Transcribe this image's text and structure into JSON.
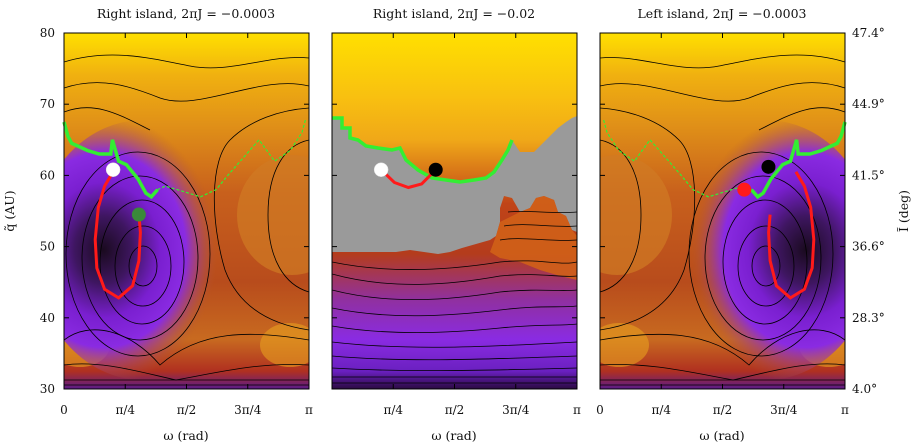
{
  "chart_data": [
    {
      "type": "heatmap",
      "title": "Right island,  2πJ = −0.0003",
      "xlabel": "ω (rad)",
      "ylabel": "q̃ (AU)",
      "xlim": [
        0,
        3.1416
      ],
      "ylim": [
        30,
        80
      ],
      "colormap": [
        "#1a0a1f",
        "#5a1a8a",
        "#8a2be2",
        "#d2691e",
        "#e8a020",
        "#ffe000"
      ],
      "center": {
        "x": 0.98,
        "y": 51.5
      },
      "red_orbit": {
        "x": [
          0.63,
          0.52,
          0.44,
          0.4,
          0.42,
          0.52,
          0.7,
          0.88,
          0.96,
          0.98,
          0.96
        ],
        "y": [
          60.5,
          58.5,
          55.5,
          51.0,
          47.0,
          44.0,
          42.8,
          44.5,
          48.0,
          52.0,
          54.5
        ]
      },
      "green_boundary": {
        "x": [
          0.0,
          0.05,
          0.1,
          0.2,
          0.3,
          0.45,
          0.6,
          0.62,
          0.7,
          0.8,
          0.95,
          1.05,
          1.12,
          1.2,
          1.3,
          1.45,
          1.6,
          1.75,
          1.95,
          2.1,
          2.3,
          2.5,
          2.7,
          2.9,
          3.05,
          3.1
        ],
        "y": [
          67.5,
          65.5,
          64.5,
          64.0,
          63.5,
          63.0,
          63.0,
          65.0,
          62.0,
          61.5,
          59.5,
          57.5,
          57.0,
          58.0,
          58.5,
          58.0,
          57.5,
          57.0,
          58.0,
          60.0,
          62.5,
          65.0,
          62.0,
          63.5,
          66.0,
          68.0
        ]
      },
      "white_point": {
        "x": 0.63,
        "y": 60.8
      },
      "green_point": {
        "x": 0.96,
        "y": 54.5
      },
      "black_point": null,
      "red_point": null,
      "xticks": [
        "0",
        "π/4",
        "π/2",
        "3π/4",
        "π"
      ],
      "yticks": [
        "30",
        "40",
        "50",
        "60",
        "70",
        "80"
      ]
    },
    {
      "type": "heatmap",
      "title": "Right island,  2πJ = −0.02",
      "xlabel": "ω (rad)",
      "xlim": [
        0,
        3.1416
      ],
      "ylim": [
        30,
        80
      ],
      "xticks": [
        "π/4",
        "π/2",
        "3π/4",
        "π"
      ],
      "white_point": {
        "x": 0.63,
        "y": 60.8
      },
      "black_point": {
        "x": 1.33,
        "y": 60.8
      },
      "red_orbit": {
        "x": [
          0.63,
          0.8,
          0.98,
          1.15,
          1.33
        ],
        "y": [
          60.8,
          59.0,
          58.3,
          58.8,
          60.8
        ]
      }
    },
    {
      "type": "heatmap",
      "title": "Left island,  2πJ = −0.0003",
      "xlabel": "ω (rad)",
      "ylabel": "Ĩ (deg)",
      "xlim": [
        0,
        3.1416
      ],
      "ylim": [
        30,
        80
      ],
      "xticks": [
        "0",
        "π/4",
        "π/2",
        "3π/4",
        "π"
      ],
      "right_ticks": [
        "4.0°",
        "28.3°",
        "36.6°",
        "41.5°",
        "44.9°",
        "47.4°"
      ],
      "center": {
        "x": 2.16,
        "y": 51.5
      },
      "black_point": {
        "x": 2.16,
        "y": 61.2
      },
      "red_point": {
        "x": 1.85,
        "y": 58.0
      }
    }
  ]
}
